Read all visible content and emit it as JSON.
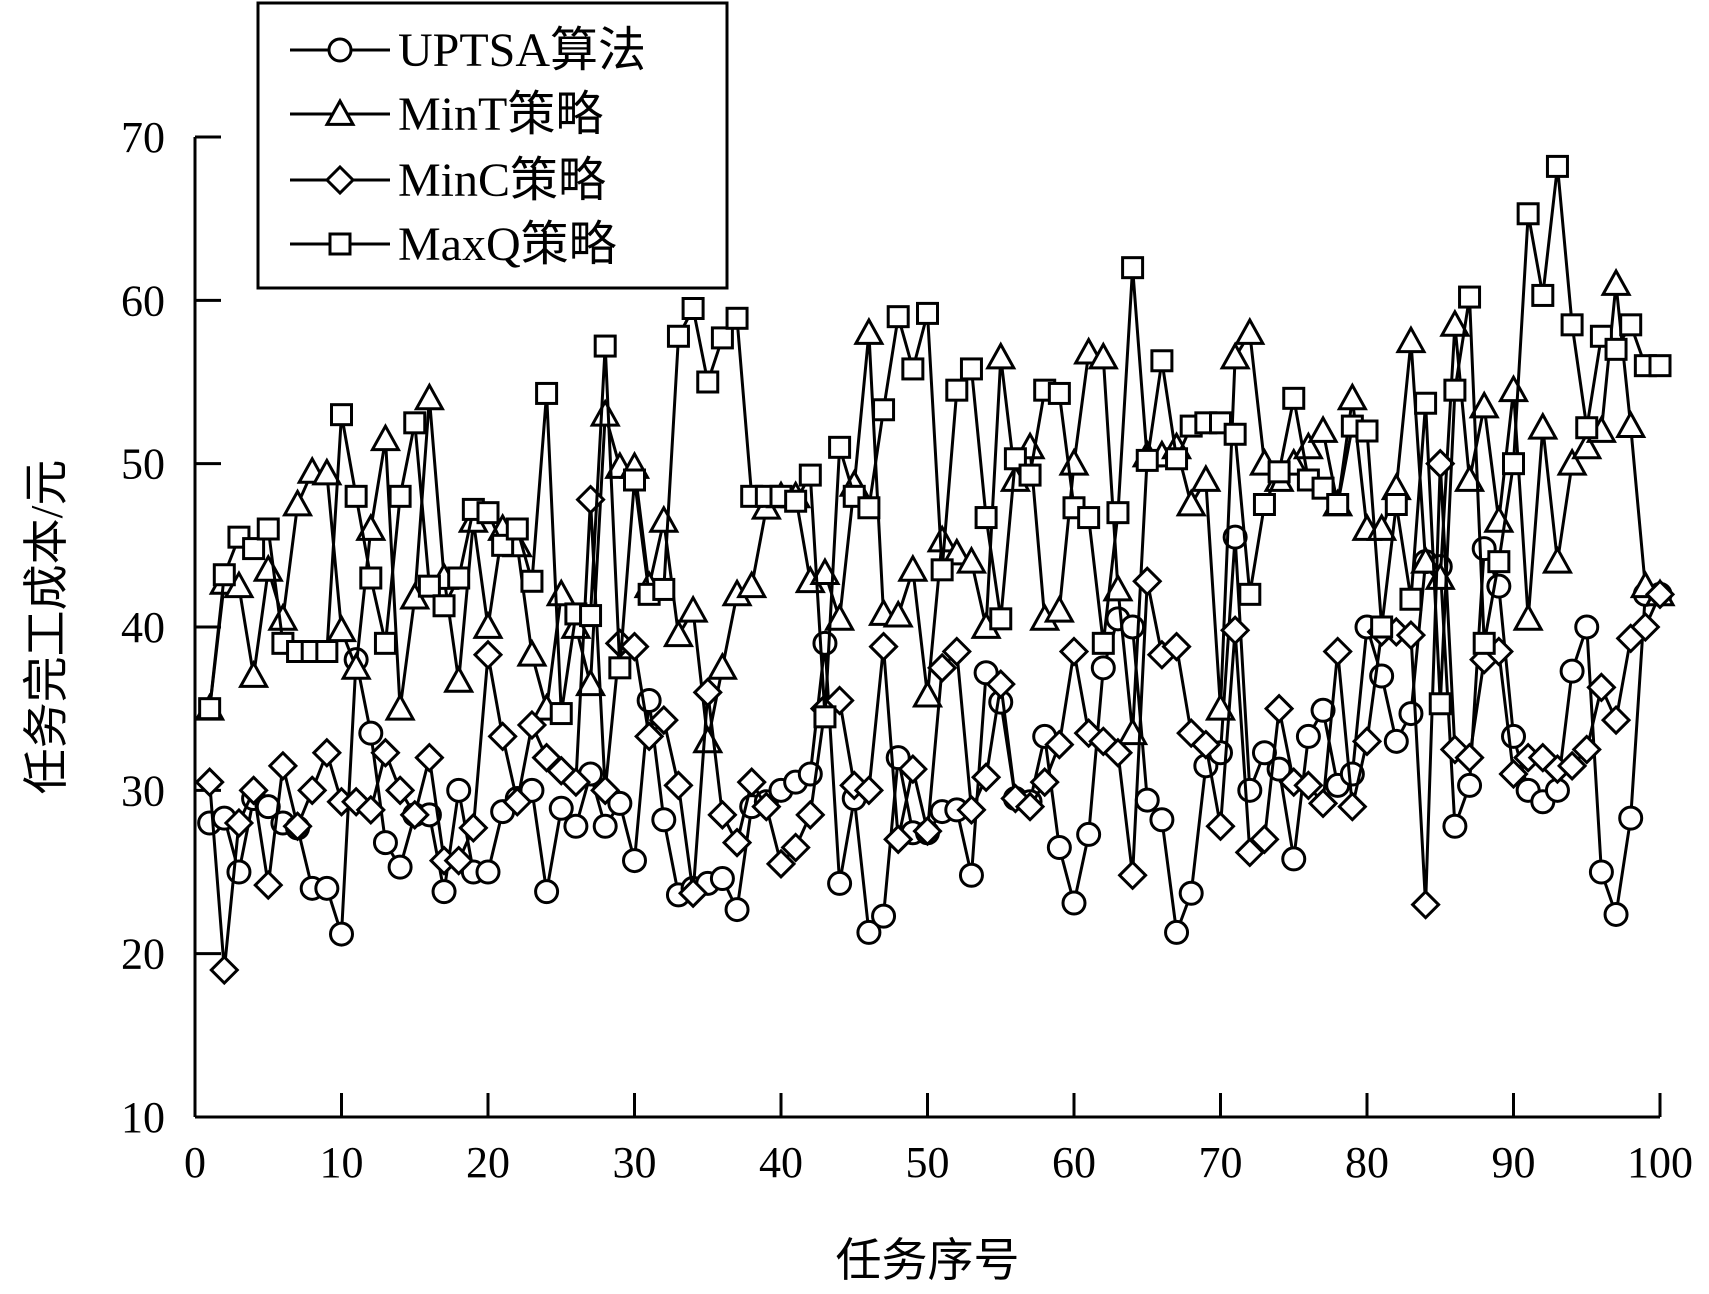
{
  "chart_data": {
    "type": "line",
    "title": "",
    "xlabel": "任务序号",
    "ylabel": "任务完工成本/元",
    "xlim": [
      0,
      100
    ],
    "ylim": [
      10,
      70
    ],
    "xticks": [
      0,
      10,
      20,
      30,
      40,
      50,
      60,
      70,
      80,
      90,
      100
    ],
    "yticks": [
      10,
      20,
      30,
      40,
      50,
      60,
      70
    ],
    "legend_position": "top-left",
    "grid": false,
    "x": [
      1,
      2,
      3,
      4,
      5,
      6,
      7,
      8,
      9,
      10,
      11,
      12,
      13,
      14,
      15,
      16,
      17,
      18,
      19,
      20,
      21,
      22,
      23,
      24,
      25,
      26,
      27,
      28,
      29,
      30,
      31,
      32,
      33,
      34,
      35,
      36,
      37,
      38,
      39,
      40,
      41,
      42,
      43,
      44,
      45,
      46,
      47,
      48,
      49,
      50,
      51,
      52,
      53,
      54,
      55,
      56,
      57,
      58,
      59,
      60,
      61,
      62,
      63,
      64,
      65,
      66,
      67,
      68,
      69,
      70,
      71,
      72,
      73,
      74,
      75,
      76,
      77,
      78,
      79,
      80,
      81,
      82,
      83,
      84,
      85,
      86,
      87,
      88,
      89,
      90,
      91,
      92,
      93,
      94,
      95,
      96,
      97,
      98,
      99,
      100
    ],
    "series": [
      {
        "name": "UPTSA算法",
        "marker": "circle",
        "values": [
          28.0,
          28.3,
          25.0,
          29.5,
          29.0,
          28.0,
          27.7,
          24.0,
          24.0,
          21.2,
          38.0,
          33.5,
          26.8,
          25.3,
          28.5,
          28.5,
          23.8,
          30.0,
          25.0,
          25.0,
          28.7,
          29.5,
          30.0,
          23.8,
          28.9,
          27.8,
          31.0,
          27.8,
          29.2,
          25.7,
          35.5,
          28.2,
          23.6,
          24.0,
          24.3,
          24.6,
          22.7,
          29.0,
          29.3,
          30.0,
          30.5,
          31.0,
          39.0,
          24.3,
          29.5,
          21.3,
          22.3,
          32.0,
          27.4,
          27.4,
          28.7,
          28.8,
          24.8,
          37.2,
          35.4,
          29.5,
          29.3,
          33.3,
          26.5,
          23.1,
          27.3,
          37.5,
          40.5,
          40.0,
          29.4,
          28.2,
          21.3,
          23.7,
          31.5,
          32.3,
          45.5,
          30.0,
          32.3,
          31.3,
          25.8,
          33.3,
          34.9,
          30.3,
          31.0,
          40.0,
          37.0,
          33.0,
          34.7,
          44.0,
          43.7,
          27.8,
          30.3,
          44.8,
          42.5,
          33.3,
          30.0,
          29.3,
          30.0,
          37.3,
          40.0,
          25.0,
          22.4,
          28.3,
          42.0,
          42.0
        ]
      },
      {
        "name": "MinT策略",
        "marker": "triangle",
        "values": [
          35.0,
          42.7,
          42.5,
          37.0,
          43.5,
          40.5,
          47.5,
          49.5,
          49.4,
          39.8,
          37.5,
          46.0,
          51.5,
          35.0,
          41.8,
          54.0,
          43.0,
          36.7,
          46.5,
          40.0,
          46.0,
          45.0,
          38.3,
          35.0,
          42.0,
          40.0,
          36.5,
          53.0,
          49.8,
          49.8,
          42.5,
          46.5,
          39.5,
          41.0,
          33.0,
          37.5,
          42.0,
          42.5,
          47.3,
          48.0,
          48.0,
          42.8,
          43.3,
          40.5,
          48.7,
          58.0,
          40.8,
          40.7,
          43.5,
          35.8,
          45.3,
          44.5,
          44.0,
          40.0,
          56.5,
          49.0,
          51.0,
          40.5,
          41.0,
          50.0,
          56.8,
          56.5,
          42.3,
          33.5,
          50.5,
          50.5,
          51.0,
          47.5,
          49.0,
          35.0,
          56.5,
          58.0,
          50.0,
          49.0,
          50.0,
          51.0,
          52.0,
          47.5,
          54.0,
          46.0,
          46.0,
          48.5,
          57.5,
          44.0,
          43.0,
          58.5,
          49.0,
          53.5,
          46.5,
          54.5,
          40.5,
          52.2,
          44.0,
          50.0,
          51.0,
          52.0,
          61.0,
          52.3,
          42.5,
          42.0
        ]
      },
      {
        "name": "MinC策略",
        "marker": "diamond",
        "values": [
          30.5,
          19.0,
          28.0,
          30.0,
          24.2,
          31.5,
          27.8,
          30.0,
          32.3,
          29.3,
          29.3,
          28.8,
          32.3,
          30.0,
          28.5,
          32.0,
          25.7,
          25.7,
          27.7,
          38.3,
          33.3,
          29.3,
          34.0,
          32.0,
          31.2,
          30.5,
          47.8,
          30.0,
          39.0,
          38.8,
          33.3,
          34.3,
          30.3,
          23.7,
          36.0,
          28.5,
          26.8,
          30.5,
          29.0,
          25.5,
          26.5,
          28.5,
          35.0,
          35.5,
          30.3,
          30.0,
          38.8,
          27.0,
          31.3,
          27.5,
          37.5,
          38.5,
          28.8,
          30.8,
          36.5,
          29.5,
          29.0,
          30.5,
          32.8,
          38.5,
          33.5,
          33.0,
          32.3,
          24.8,
          42.8,
          38.3,
          38.8,
          33.5,
          32.8,
          27.8,
          39.8,
          26.2,
          27.0,
          35.0,
          30.5,
          30.3,
          29.2,
          38.5,
          29.0,
          33.0,
          39.7,
          39.7,
          39.5,
          23.0,
          50.0,
          32.5,
          32.0,
          38.0,
          38.5,
          31.0,
          32.0,
          32.0,
          31.3,
          31.5,
          32.5,
          36.3,
          34.3,
          39.3,
          40.0,
          42.0
        ]
      },
      {
        "name": "MaxQ策略",
        "marker": "square",
        "values": [
          35.0,
          43.2,
          45.5,
          44.8,
          46.0,
          39.0,
          38.5,
          38.5,
          38.5,
          53.0,
          48.0,
          43.0,
          39.0,
          48.0,
          52.5,
          42.5,
          41.3,
          43.0,
          47.2,
          47.0,
          45.0,
          46.0,
          42.8,
          54.3,
          34.7,
          40.8,
          40.7,
          57.2,
          37.5,
          49.0,
          42.0,
          42.3,
          57.8,
          59.5,
          55.0,
          57.7,
          58.9,
          48.0,
          48.0,
          48.0,
          47.7,
          49.3,
          34.5,
          51.0,
          48.0,
          47.3,
          53.3,
          59.0,
          55.8,
          59.2,
          43.5,
          54.5,
          55.8,
          46.7,
          40.5,
          50.3,
          49.3,
          54.5,
          54.3,
          47.3,
          46.7,
          39.0,
          47.0,
          62.0,
          50.2,
          56.3,
          50.3,
          52.3,
          52.5,
          52.5,
          51.8,
          42.0,
          47.5,
          49.5,
          54.0,
          49.0,
          48.5,
          47.5,
          52.3,
          52.0,
          40.0,
          47.5,
          41.7,
          53.7,
          35.3,
          54.5,
          60.2,
          39.0,
          44.0,
          50.0,
          65.3,
          60.3,
          68.2,
          58.5,
          52.2,
          57.8,
          57.0,
          58.5,
          56.0,
          56.0
        ]
      }
    ]
  }
}
